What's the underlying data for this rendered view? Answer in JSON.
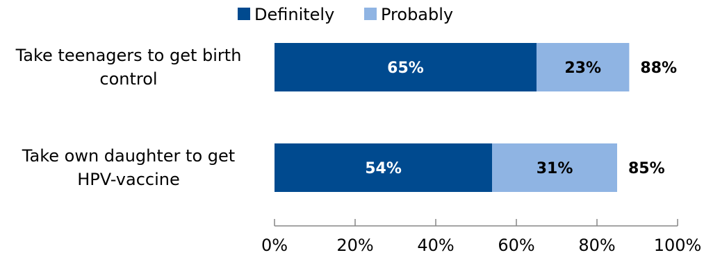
{
  "chart_data": {
    "type": "bar",
    "orientation": "horizontal",
    "stacked": true,
    "categories": [
      "Take teenagers to get birth control",
      "Take own daughter to get HPV-vaccine"
    ],
    "category_lines": [
      [
        "Take teenagers to get birth",
        "control"
      ],
      [
        "Take own daughter to get",
        "HPV-vaccine"
      ]
    ],
    "series": [
      {
        "name": "Definitely",
        "values": [
          65,
          54
        ],
        "labels": [
          "65%",
          "54%"
        ],
        "color": "#004A8F",
        "label_color": "#ffffff"
      },
      {
        "name": "Probably",
        "values": [
          23,
          31
        ],
        "labels": [
          "23%",
          "31%"
        ],
        "color": "#8FB4E3",
        "label_color": "#000000"
      }
    ],
    "totals": [
      88,
      85
    ],
    "total_labels": [
      "88%",
      "85%"
    ],
    "xlim": [
      0,
      100
    ],
    "xticks": [
      0,
      20,
      40,
      60,
      80,
      100
    ],
    "xtick_labels": [
      "0%",
      "20%",
      "40%",
      "60%",
      "80%",
      "100%"
    ],
    "grid": false,
    "legend_position": "top"
  }
}
